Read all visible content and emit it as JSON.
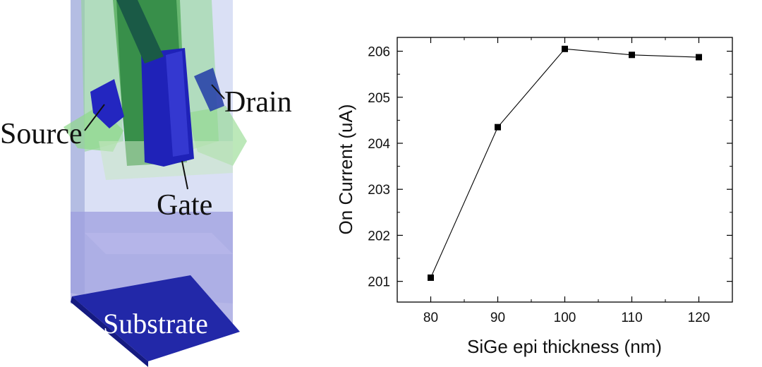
{
  "device": {
    "labels": {
      "source": "Source",
      "drain": "Drain",
      "gate": "Gate",
      "substrate": "Substrate"
    },
    "colors": {
      "metal": "#1f22b8",
      "fin": "#2e8b3a",
      "epi": "#8fd88a",
      "oxide": "#b9c4ee",
      "substrate": "#222aa8"
    }
  },
  "chart_data": {
    "type": "line",
    "xlabel": "SiGe epi thickness (nm)",
    "ylabel": "On Current (uA)",
    "xlim": [
      75,
      125
    ],
    "ylim": [
      200.55,
      206.3
    ],
    "xticks": [
      80,
      90,
      100,
      110,
      120
    ],
    "yticks": [
      201,
      202,
      203,
      204,
      205,
      206
    ],
    "grid": false,
    "marker": "square",
    "color": "#000000",
    "series": [
      {
        "x": [
          80,
          90,
          100,
          110,
          120
        ],
        "values": [
          201.08,
          204.35,
          206.05,
          205.92,
          205.87
        ]
      }
    ]
  }
}
